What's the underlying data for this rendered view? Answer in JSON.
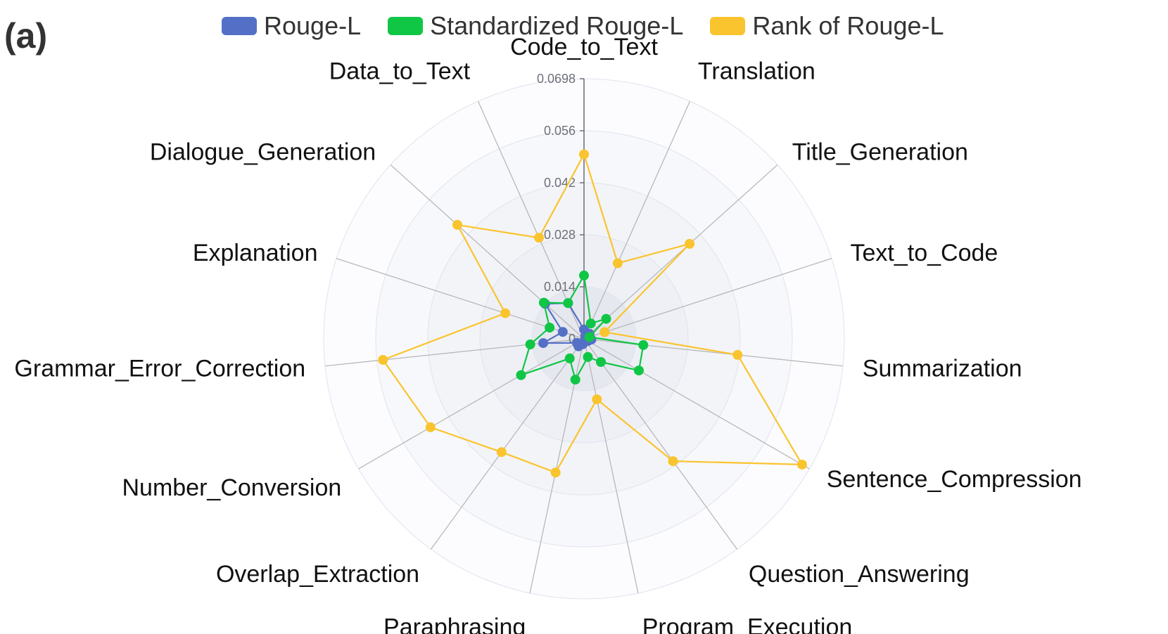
{
  "panel_label": "(a)",
  "legend": [
    {
      "label": "Rouge-L",
      "color": "#5470c6"
    },
    {
      "label": "Standardized Rouge-L",
      "color": "#0fc645"
    },
    {
      "label": "Rank of Rouge-L",
      "color": "#fac42e"
    }
  ],
  "chart_data": {
    "type": "radar",
    "title": "",
    "indicators": [
      "Code_to_Text",
      "Translation",
      "Title_Generation",
      "Text_to_Code",
      "Summarization",
      "Sentence_Compression",
      "Question_Answering",
      "Program_Execution",
      "Paraphrasing",
      "Overlap_Extraction",
      "Number_Conversion",
      "Grammar_Error_Correction",
      "Explanation",
      "Dialogue_Generation",
      "Data_to_Text"
    ],
    "axis": {
      "min": 0,
      "max": 0.0698,
      "ticks": [
        "0",
        "0.014",
        "0.028",
        "0.042",
        "0.056",
        "0.0698"
      ]
    },
    "series": [
      {
        "name": "Rouge-L",
        "color": "#5470c6",
        "values": [
          0.0025,
          0.0008,
          0.002,
          0.001,
          0.002,
          0.0012,
          0.0008,
          0.0008,
          0.0015,
          0.0025,
          0.0022,
          0.011,
          0.006,
          0.014,
          0.0105
        ]
      },
      {
        "name": "Standardized Rouge-L",
        "color": "#0fc645",
        "values": [
          0.017,
          0.0045,
          0.008,
          0.0015,
          0.016,
          0.017,
          0.0077,
          0.005,
          0.0112,
          0.0065,
          0.0195,
          0.0145,
          0.0097,
          0.0145,
          0.0105
        ]
      },
      {
        "name": "Rank of Rouge-L",
        "color": "#fac42e",
        "values": [
          0.0495,
          0.0222,
          0.0381,
          0.0058,
          0.0414,
          0.0675,
          0.0406,
          0.0166,
          0.0367,
          0.0376,
          0.0475,
          0.0542,
          0.0222,
          0.0457,
          0.0297
        ]
      }
    ]
  }
}
